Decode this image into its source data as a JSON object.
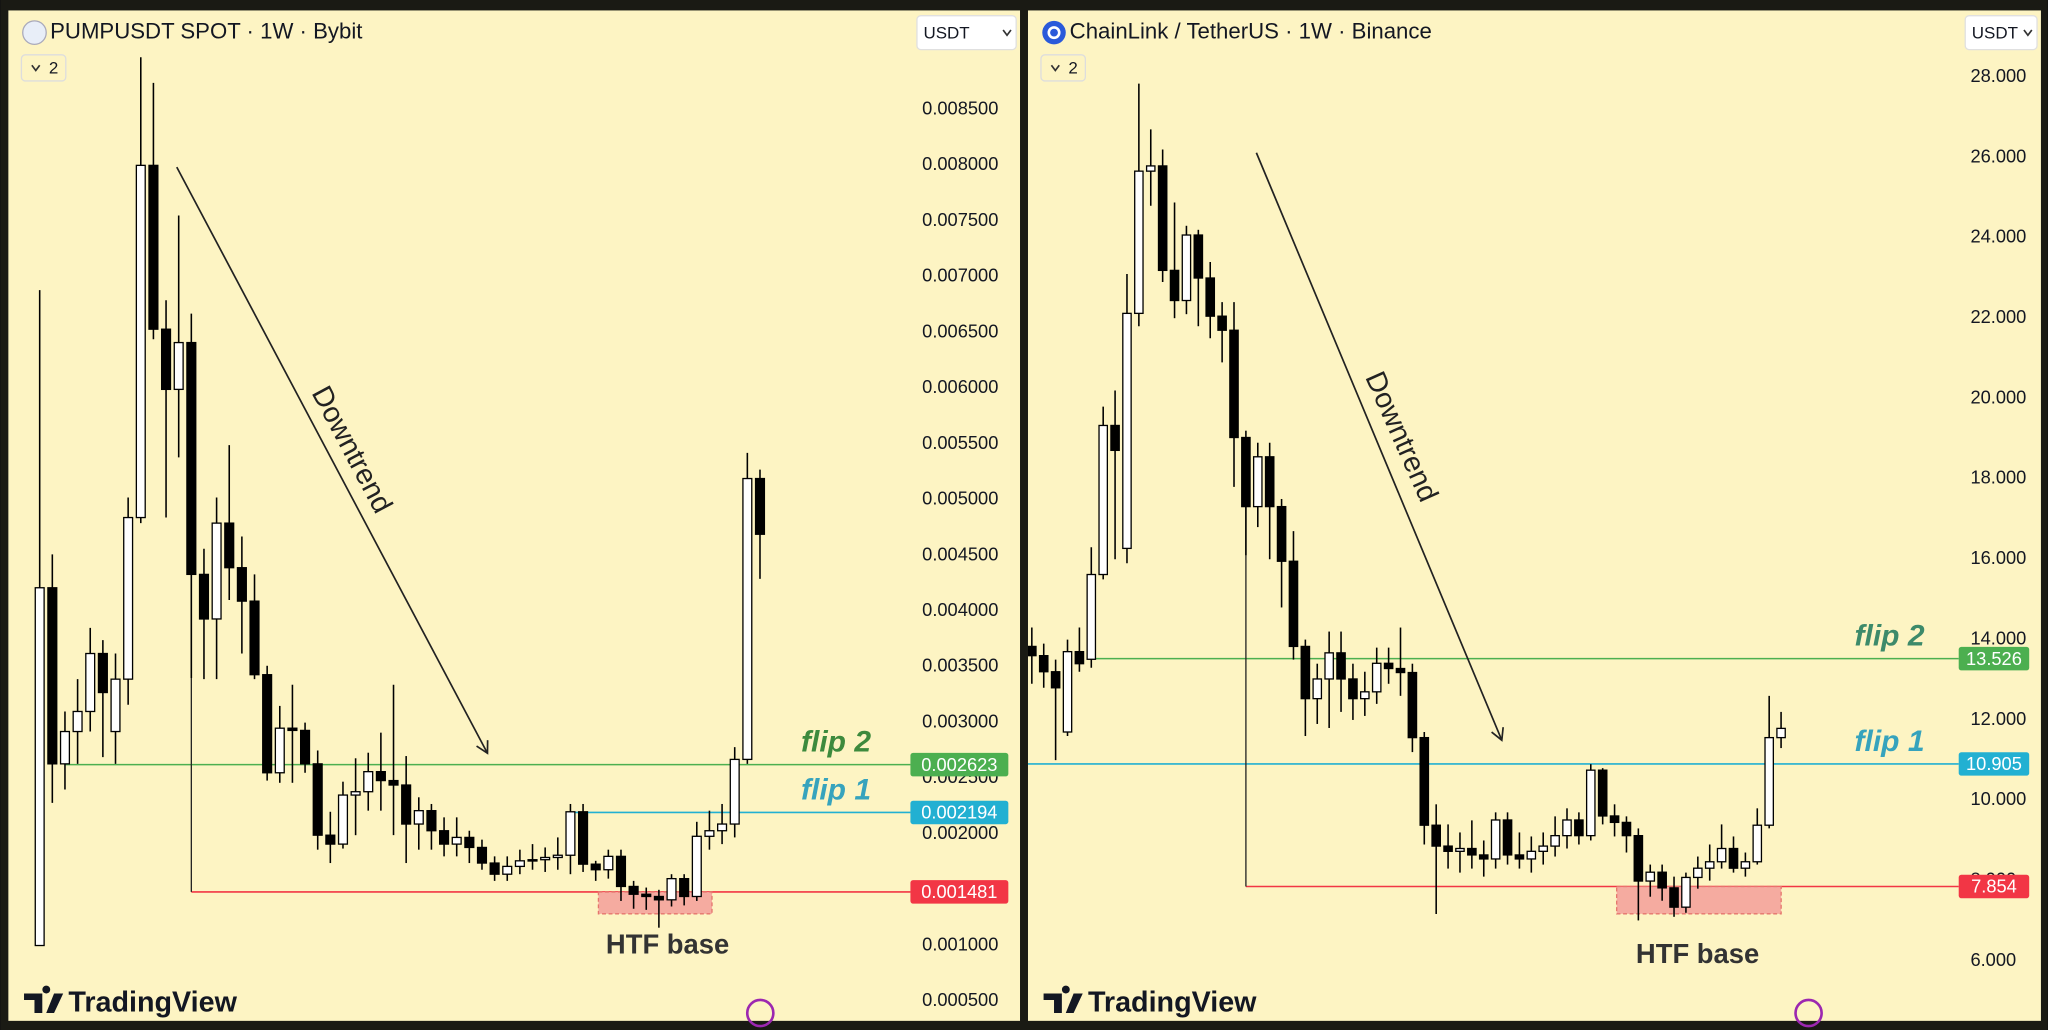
{
  "chart_data": [
    {
      "type": "candlestick",
      "title": "PUMPUSDT SPOT · 1W · Bybit",
      "currency": "USDT",
      "indicator_count": 2,
      "brand": "TradingView",
      "up_color": "#ffffff",
      "down_color": "#000000",
      "ylim": [
        0.000324,
        0.00939
      ],
      "yticks": [
        {
          "value": 0.0085,
          "label": "0.008500"
        },
        {
          "value": 0.008,
          "label": "0.008000"
        },
        {
          "value": 0.0075,
          "label": "0.007500"
        },
        {
          "value": 0.007,
          "label": "0.007000"
        },
        {
          "value": 0.0065,
          "label": "0.006500"
        },
        {
          "value": 0.006,
          "label": "0.006000"
        },
        {
          "value": 0.0055,
          "label": "0.005500"
        },
        {
          "value": 0.005,
          "label": "0.005000"
        },
        {
          "value": 0.0045,
          "label": "0.004500"
        },
        {
          "value": 0.004,
          "label": "0.004000"
        },
        {
          "value": 0.0035,
          "label": "0.003500"
        },
        {
          "value": 0.003,
          "label": "0.003000"
        },
        {
          "value": 0.0025,
          "label": "0.002500"
        },
        {
          "value": 0.002,
          "label": "0.002000"
        },
        {
          "value": 0.0015,
          "label": "0.001500"
        },
        {
          "value": 0.001,
          "label": "0.001000"
        },
        {
          "value": 0.0005,
          "label": "0.000500"
        }
      ],
      "open": [
        0.001,
        0.00421,
        0.00263,
        0.00292,
        0.0031,
        0.00362,
        0.00292,
        0.00339,
        0.00484,
        0.008,
        0.00653,
        0.00599,
        0.00641,
        0.00433,
        0.00393,
        0.00479,
        0.00439,
        0.00409,
        0.00343,
        0.00255,
        0.00295,
        0.00293,
        0.00263,
        0.00199,
        0.00191,
        0.00235,
        0.00238,
        0.00256,
        0.00248,
        0.00244,
        0.00209,
        0.00221,
        0.00203,
        0.00191,
        0.00197,
        0.00188,
        0.00174,
        0.00164,
        0.00171,
        0.00176,
        0.00177,
        0.00179,
        0.00181,
        0.0022,
        0.00173,
        0.00168,
        0.0018,
        0.00153,
        0.00146,
        0.00144,
        0.00141,
        0.0016,
        0.00144,
        0.00198,
        0.00203,
        0.00209,
        0.00267,
        0.00519
      ],
      "high": [
        0.00688,
        0.00451,
        0.0031,
        0.00339,
        0.00385,
        0.00374,
        0.00362,
        0.00502,
        0.00897,
        0.00874,
        0.00679,
        0.00755,
        0.00667,
        0.00456,
        0.00502,
        0.00549,
        0.00467,
        0.00433,
        0.00351,
        0.00315,
        0.00334,
        0.003,
        0.00275,
        0.0022,
        0.00247,
        0.00268,
        0.00273,
        0.00291,
        0.00334,
        0.0027,
        0.00233,
        0.00227,
        0.00215,
        0.00215,
        0.00203,
        0.00195,
        0.0018,
        0.0018,
        0.00186,
        0.00191,
        0.00188,
        0.00197,
        0.00227,
        0.00227,
        0.00176,
        0.00186,
        0.00186,
        0.00158,
        0.00152,
        0.0015,
        0.00164,
        0.00164,
        0.00211,
        0.00221,
        0.00227,
        0.00278,
        0.00542,
        0.00527
      ],
      "low": [
        0.001,
        0.00228,
        0.0024,
        0.00263,
        0.00292,
        0.00269,
        0.00263,
        0.00316,
        0.00479,
        0.00644,
        0.00484,
        0.00538,
        0.0034,
        0.00339,
        0.00339,
        0.0041,
        0.00362,
        0.00339,
        0.00248,
        0.00246,
        0.00246,
        0.00255,
        0.00186,
        0.00174,
        0.00187,
        0.00199,
        0.00221,
        0.00221,
        0.00199,
        0.00174,
        0.00186,
        0.00186,
        0.0018,
        0.0018,
        0.00174,
        0.00168,
        0.00158,
        0.00158,
        0.00164,
        0.00168,
        0.00166,
        0.00168,
        0.00164,
        0.00166,
        0.00158,
        0.0016,
        0.0014,
        0.00133,
        0.00132,
        0.00116,
        0.00135,
        0.00136,
        0.0014,
        0.00186,
        0.00191,
        0.00197,
        0.00263,
        0.00429
      ],
      "close": [
        0.00421,
        0.00263,
        0.00292,
        0.0031,
        0.00362,
        0.00327,
        0.00339,
        0.00484,
        0.008,
        0.00653,
        0.00599,
        0.00641,
        0.00433,
        0.00393,
        0.00479,
        0.00439,
        0.00409,
        0.00343,
        0.00255,
        0.00295,
        0.00293,
        0.00263,
        0.00199,
        0.00191,
        0.00235,
        0.00238,
        0.00256,
        0.00248,
        0.00244,
        0.00209,
        0.00221,
        0.00203,
        0.00191,
        0.00197,
        0.00188,
        0.00174,
        0.00164,
        0.00171,
        0.00176,
        0.00177,
        0.00179,
        0.00181,
        0.0022,
        0.00173,
        0.00168,
        0.0018,
        0.00153,
        0.00146,
        0.00144,
        0.00141,
        0.0016,
        0.00144,
        0.00198,
        0.00203,
        0.00209,
        0.00267,
        0.00519,
        0.00469
      ],
      "levels": [
        {
          "name": "flip 2",
          "value": 0.002623,
          "color": "#4caf50",
          "text_color": "#3d8a3d"
        },
        {
          "name": "flip 1",
          "value": 0.002194,
          "color": "#22b0d2",
          "text_color": "#36a3bd"
        },
        {
          "value": 0.001481,
          "color": "#f23645"
        }
      ],
      "annotations": {
        "trend": "Downtrend",
        "base": "HTF base"
      }
    },
    {
      "type": "candlestick",
      "title": "ChainLink / TetherUS · 1W · Binance",
      "currency": "USDT",
      "indicator_count": 2,
      "brand": "TradingView",
      "up_color": "#ffffff",
      "down_color": "#000000",
      "ylim": [
        4.51,
        29.66
      ],
      "yticks": [
        {
          "value": 28,
          "label": "28.000"
        },
        {
          "value": 26,
          "label": "26.000"
        },
        {
          "value": 24,
          "label": "24.000"
        },
        {
          "value": 22,
          "label": "22.000"
        },
        {
          "value": 20,
          "label": "20.000"
        },
        {
          "value": 18,
          "label": "18.000"
        },
        {
          "value": 16,
          "label": "16.000"
        },
        {
          "value": 14,
          "label": "14.000"
        },
        {
          "value": 12,
          "label": "12.000"
        },
        {
          "value": 10,
          "label": "10.000"
        },
        {
          "value": 8,
          "label": "8.000"
        },
        {
          "value": 6,
          "label": "6.000"
        }
      ],
      "open": [
        13.83,
        13.6,
        13.2,
        11.7,
        13.7,
        13.51,
        15.62,
        19.33,
        16.27,
        22.12,
        25.66,
        25.79,
        23.19,
        22.44,
        24.07,
        23.0,
        22.05,
        21.7,
        19.03,
        17.31,
        18.55,
        17.31,
        15.95,
        13.83,
        12.53,
        13.02,
        13.67,
        13.02,
        12.53,
        12.7,
        13.41,
        13.28,
        13.18,
        11.56,
        9.38,
        8.86,
        8.73,
        8.8,
        8.64,
        8.54,
        9.51,
        8.64,
        8.54,
        8.73,
        8.86,
        9.12,
        9.51,
        9.12,
        10.75,
        9.61,
        9.45,
        9.12,
        7.99,
        8.21,
        7.82,
        7.34,
        8.08,
        8.31,
        8.47,
        8.8,
        8.31,
        8.47,
        9.38,
        11.56
      ],
      "high": [
        14.3,
        13.9,
        13.5,
        14.0,
        14.3,
        16.3,
        19.8,
        20.2,
        23.1,
        27.84,
        26.7,
        26.2,
        24.88,
        24.3,
        24.2,
        23.4,
        22.4,
        22.4,
        19.2,
        18.9,
        18.9,
        17.5,
        16.7,
        14.0,
        13.4,
        14.2,
        14.2,
        13.4,
        13.2,
        13.8,
        13.8,
        14.3,
        13.4,
        11.7,
        9.9,
        9.4,
        9.2,
        9.5,
        9.0,
        9.7,
        9.7,
        9.2,
        9.1,
        9.2,
        9.6,
        9.8,
        9.7,
        10.9,
        10.8,
        9.9,
        9.6,
        9.3,
        8.4,
        8.4,
        8.1,
        8.2,
        8.6,
        8.9,
        9.4,
        9.1,
        8.7,
        9.8,
        12.6,
        12.2
      ],
      "low": [
        12.9,
        12.8,
        11.0,
        11.6,
        13.2,
        13.3,
        15.5,
        16.0,
        15.9,
        21.8,
        24.8,
        22.9,
        22.0,
        22.1,
        21.8,
        21.5,
        20.9,
        17.8,
        16.1,
        16.8,
        16.0,
        14.8,
        13.5,
        11.6,
        11.9,
        11.8,
        12.2,
        12.0,
        12.1,
        12.4,
        12.9,
        12.6,
        11.2,
        8.9,
        7.17,
        8.3,
        8.2,
        8.3,
        8.1,
        8.3,
        8.4,
        8.3,
        8.2,
        8.4,
        8.6,
        8.8,
        8.9,
        9.0,
        9.4,
        9.1,
        8.7,
        7.01,
        7.6,
        7.5,
        7.1,
        7.2,
        7.8,
        8.0,
        8.3,
        8.2,
        8.1,
        8.4,
        9.3,
        11.3
      ],
      "close": [
        13.6,
        13.2,
        12.8,
        13.7,
        13.4,
        15.62,
        19.33,
        18.71,
        22.12,
        25.66,
        25.79,
        23.19,
        22.44,
        24.07,
        23.0,
        22.05,
        21.7,
        19.03,
        17.31,
        18.55,
        17.31,
        15.95,
        13.83,
        12.53,
        13.02,
        13.67,
        13.02,
        12.53,
        12.7,
        13.41,
        13.28,
        13.18,
        11.56,
        9.38,
        8.86,
        8.73,
        8.8,
        8.64,
        8.54,
        9.51,
        8.64,
        8.54,
        8.73,
        8.86,
        9.12,
        9.51,
        9.12,
        10.75,
        9.61,
        9.45,
        9.12,
        7.99,
        8.21,
        7.82,
        7.34,
        8.08,
        8.31,
        8.47,
        8.8,
        8.31,
        8.47,
        9.38,
        11.56,
        11.79
      ],
      "levels": [
        {
          "name": "flip 2",
          "value": 13.526,
          "color": "#4caf50",
          "text_color": "#3d8a6a"
        },
        {
          "name": "flip 1",
          "value": 10.905,
          "color": "#22b0d2",
          "text_color": "#36a3bd"
        },
        {
          "value": 7.854,
          "color": "#f23645"
        }
      ],
      "annotations": {
        "trend": "Downtrend",
        "base": "HTF base"
      }
    }
  ]
}
